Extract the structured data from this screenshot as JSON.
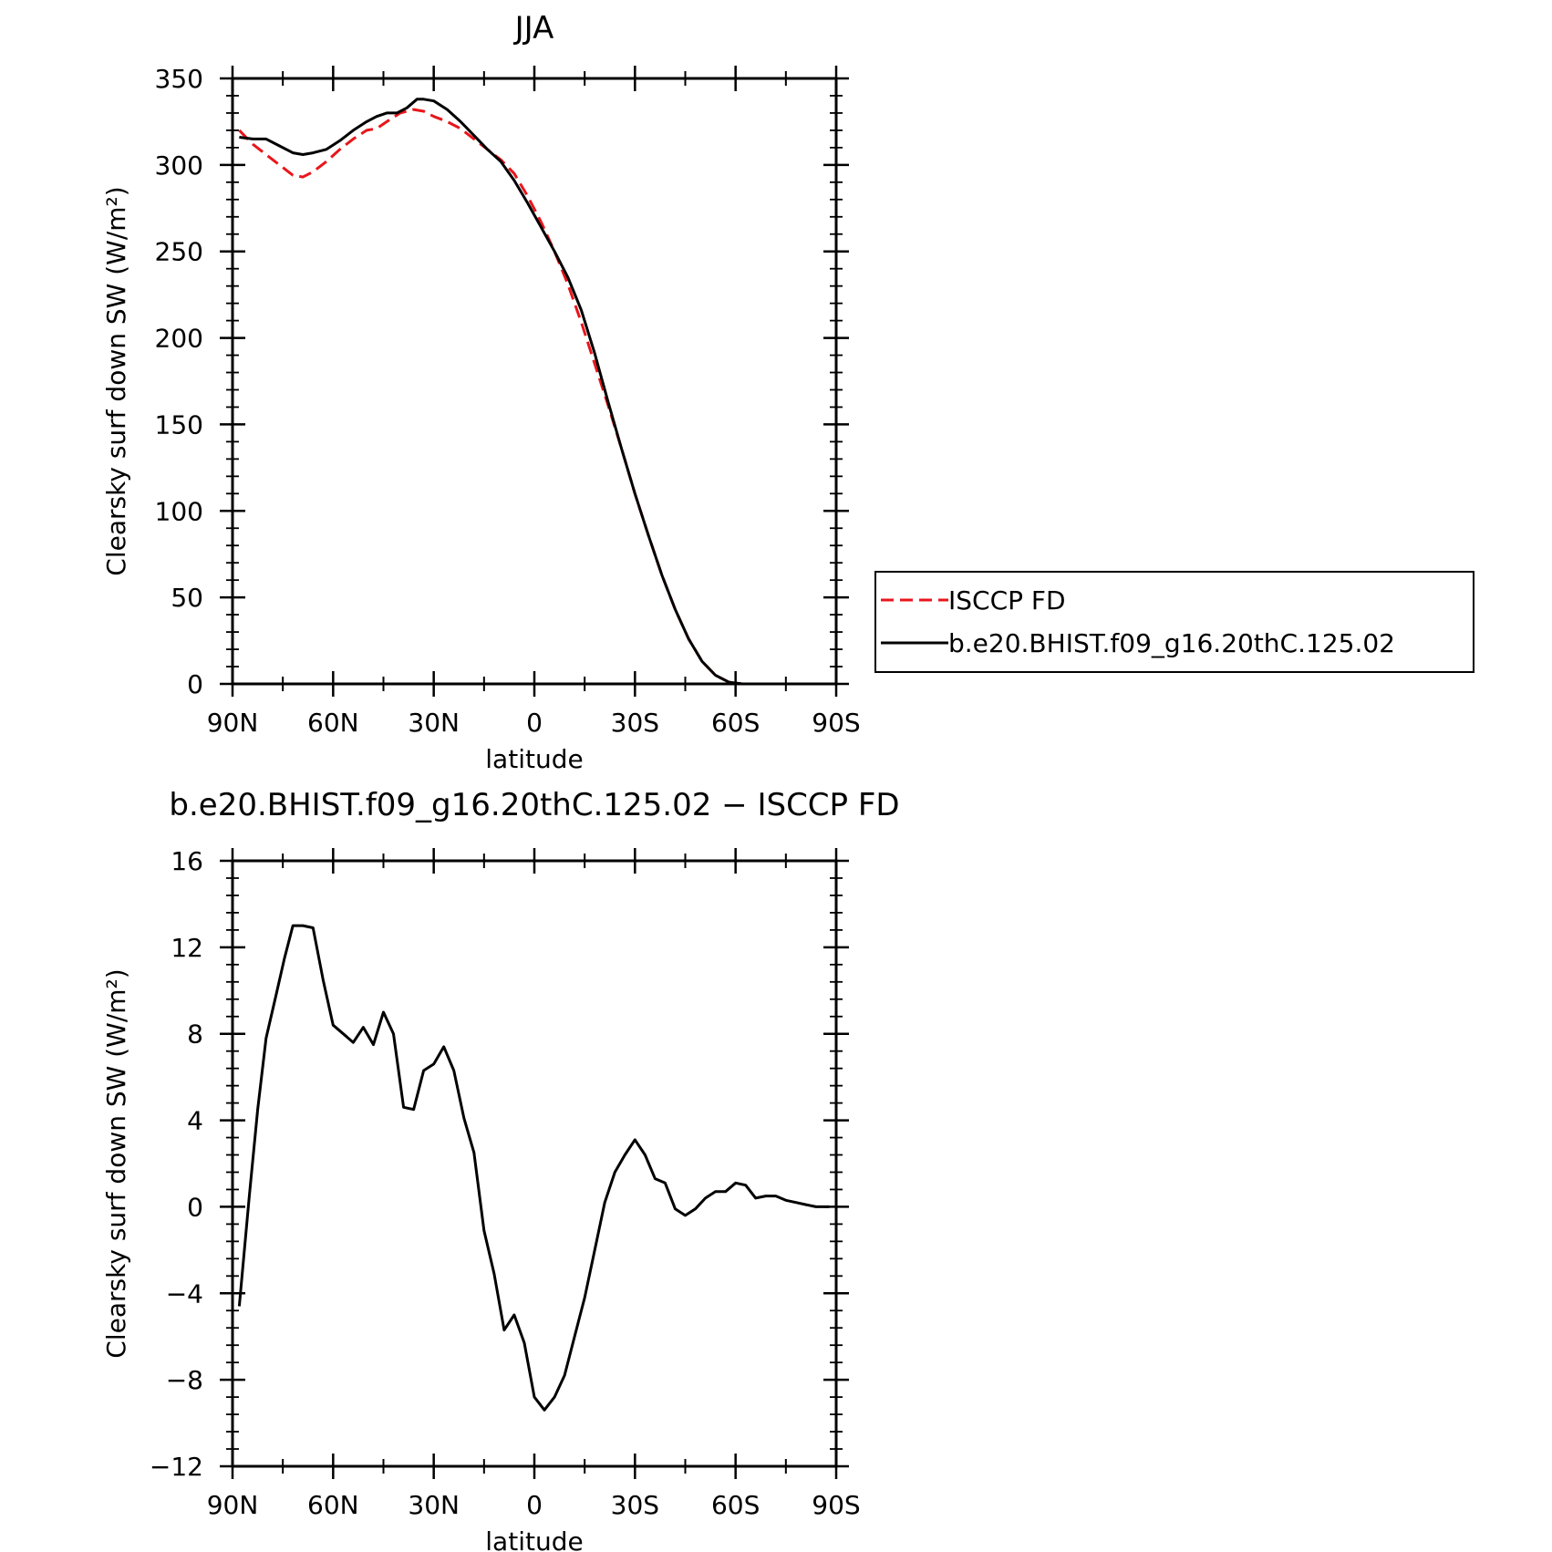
{
  "chart_data": [
    {
      "type": "line",
      "title": "JJA",
      "xlabel": "latitude",
      "ylabel": "Clearsky surf down SW (W/m²)",
      "x_ticks": [
        "90N",
        "60N",
        "30N",
        "0",
        "30S",
        "60S",
        "90S"
      ],
      "xlim": [
        90,
        -90
      ],
      "ylim": [
        0,
        350
      ],
      "y_ticks": [
        "0",
        "50",
        "100",
        "150",
        "200",
        "250",
        "300",
        "350"
      ],
      "legend": "right",
      "series": [
        {
          "name": "ISCCP FD",
          "color": "#e8161b",
          "style": "dashed",
          "x": [
            88,
            84,
            80,
            76,
            72,
            69,
            66,
            62,
            58,
            54,
            50,
            47,
            44,
            40,
            36,
            33,
            30,
            26,
            22,
            18,
            14,
            10,
            6,
            2,
            -2,
            -6,
            -10,
            -14,
            -18,
            -22,
            -26,
            -30,
            -34,
            -38,
            -42,
            -46,
            -50,
            -54,
            -58,
            -62,
            -66,
            -70,
            -74,
            -78,
            -82,
            -86,
            -88
          ],
          "y": [
            320,
            312,
            306,
            300,
            294,
            293,
            296,
            302,
            309,
            315,
            320,
            321,
            325,
            330,
            332,
            331,
            328,
            325,
            321,
            315,
            309,
            303,
            295,
            282,
            267,
            250,
            231,
            209,
            185,
            161,
            136,
            110,
            86,
            63,
            43,
            26,
            13,
            5,
            1,
            0,
            0,
            0,
            0,
            0,
            0,
            0,
            0
          ],
          "values_note": "",
          "lon_unit": ""
        },
        {
          "name": "b.e20.BHIST.f09_g16.20thC.125.02",
          "color": "#000000",
          "style": "solid",
          "x": [
            88,
            84,
            80,
            76,
            72,
            69,
            66,
            62,
            58,
            54,
            50,
            47,
            44,
            41,
            38,
            35,
            33,
            30,
            26,
            22,
            18,
            14,
            10,
            6,
            2,
            -2,
            -6,
            -10,
            -14,
            -18,
            -22,
            -26,
            -30,
            -34,
            -38,
            -42,
            -46,
            -50,
            -54,
            -58,
            -62,
            -66,
            -70,
            -74,
            -78,
            -82,
            -86,
            -88
          ],
          "y": [
            316,
            315,
            315,
            311,
            307,
            306,
            307,
            309,
            314,
            320,
            325,
            328,
            330,
            330,
            333,
            338,
            338,
            337,
            332,
            325,
            317,
            309,
            302,
            291,
            278,
            264,
            250,
            235,
            216,
            191,
            163,
            136,
            110,
            86,
            63,
            43,
            26,
            13,
            5,
            1,
            0,
            0,
            0,
            0,
            0,
            0,
            0,
            0
          ]
        }
      ]
    },
    {
      "type": "line",
      "title": "b.e20.BHIST.f09_g16.20thC.125.02 − ISCCP FD",
      "xlabel": "latitude",
      "ylabel": "Clearsky surf down SW (W/m²)",
      "x_ticks": [
        "90N",
        "60N",
        "30N",
        "0",
        "30S",
        "60S",
        "90S"
      ],
      "xlim": [
        90,
        -90
      ],
      "ylim": [
        -12,
        16
      ],
      "y_ticks": [
        "−12",
        "−8",
        "−4",
        "0",
        "4",
        "8",
        "12",
        "16"
      ],
      "series": [
        {
          "color": "#000000",
          "style": "solid",
          "x": [
            88,
            85,
            82.5,
            80,
            77,
            74.5,
            72,
            69,
            66,
            63,
            60,
            57,
            54,
            51,
            48,
            45,
            42,
            39,
            36,
            33,
            30,
            27,
            24,
            21,
            18,
            15,
            12,
            9,
            6,
            3,
            0,
            -3,
            -6,
            -9,
            -12,
            -15,
            -18,
            -21,
            -24,
            -27,
            -30,
            -33,
            -36,
            -39,
            -42,
            -45,
            -48,
            -51,
            -54,
            -57,
            -60,
            -63,
            -66,
            -69,
            -72,
            -75,
            -78,
            -81,
            -84,
            -88
          ],
          "y": [
            -4.6,
            0.5,
            4.5,
            7.8,
            9.8,
            11.5,
            13.0,
            13.0,
            12.9,
            10.5,
            8.4,
            8.0,
            7.6,
            8.3,
            7.5,
            9.0,
            8.0,
            4.6,
            4.5,
            6.3,
            6.6,
            7.4,
            6.3,
            4.1,
            2.5,
            -1.1,
            -3.1,
            -5.7,
            -5.0,
            -6.3,
            -8.8,
            -9.4,
            -8.8,
            -7.8,
            -6.0,
            -4.2,
            -2.0,
            0.2,
            1.6,
            2.4,
            3.1,
            2.4,
            1.3,
            1.1,
            -0.1,
            -0.4,
            -0.1,
            0.4,
            0.7,
            0.7,
            1.1,
            1.0,
            0.4,
            0.5,
            0.5,
            0.3,
            0.2,
            0.1,
            0.0,
            0.0
          ]
        }
      ]
    }
  ]
}
